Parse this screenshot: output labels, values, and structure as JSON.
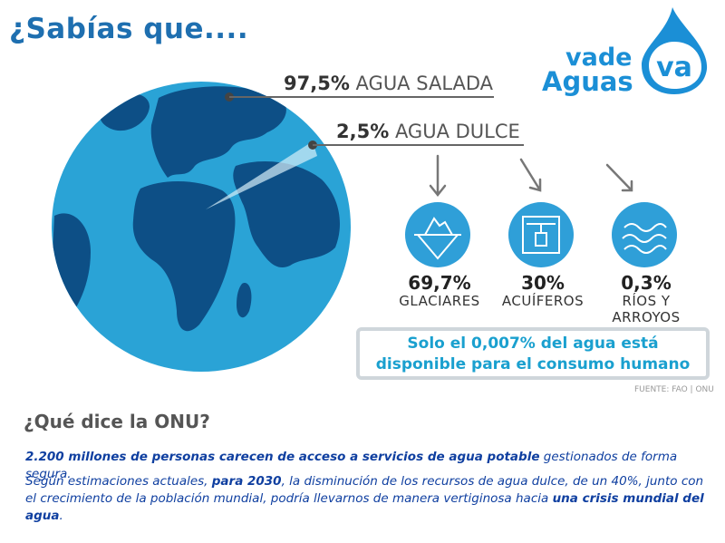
{
  "title": "¿Sabías que....",
  "logo": {
    "line1": "vade",
    "line2": "Aguas",
    "mark": "va"
  },
  "stats": {
    "salt": {
      "pct": "97,5%",
      "label": "AGUA SALADA"
    },
    "fresh": {
      "pct": "2,5%",
      "label": "AGUA DULCE"
    }
  },
  "breakdown": [
    {
      "pct": "69,7%",
      "label": "GLACIARES",
      "icon": "iceberg-icon"
    },
    {
      "pct": "30%",
      "label": "ACUÍFEROS",
      "icon": "well-icon"
    },
    {
      "pct": "0,3%",
      "label_line1": "RÍOS Y",
      "label_line2": "ARROYOS",
      "icon": "waves-icon"
    }
  ],
  "callout": {
    "line1": "Solo el 0,007% del agua está",
    "line2": "disponible para el consumo humano"
  },
  "source": "FUENTE: FAO | ONU",
  "onu": {
    "heading": "¿Qué dice la ONU?",
    "p1_bold": "2.200 millones de personas carecen de acceso a servicios de agua potable",
    "p1_rest": " gestionados de forma segura.",
    "p2_a": "Según estimaciones actuales, ",
    "p2_b": "para 2030",
    "p2_c": ", la disminución de los recursos de agua dulce, de un 40%, junto con el crecimiento de la población mundial, podría llevarnos de manera vertiginosa hacia ",
    "p2_d": "una crisis mundial del agua",
    "p2_e": "."
  },
  "colors": {
    "ocean": "#2aa3d6",
    "land": "#0d4f86",
    "accent": "#1e6fb0",
    "icon": "#2f9fd8"
  }
}
